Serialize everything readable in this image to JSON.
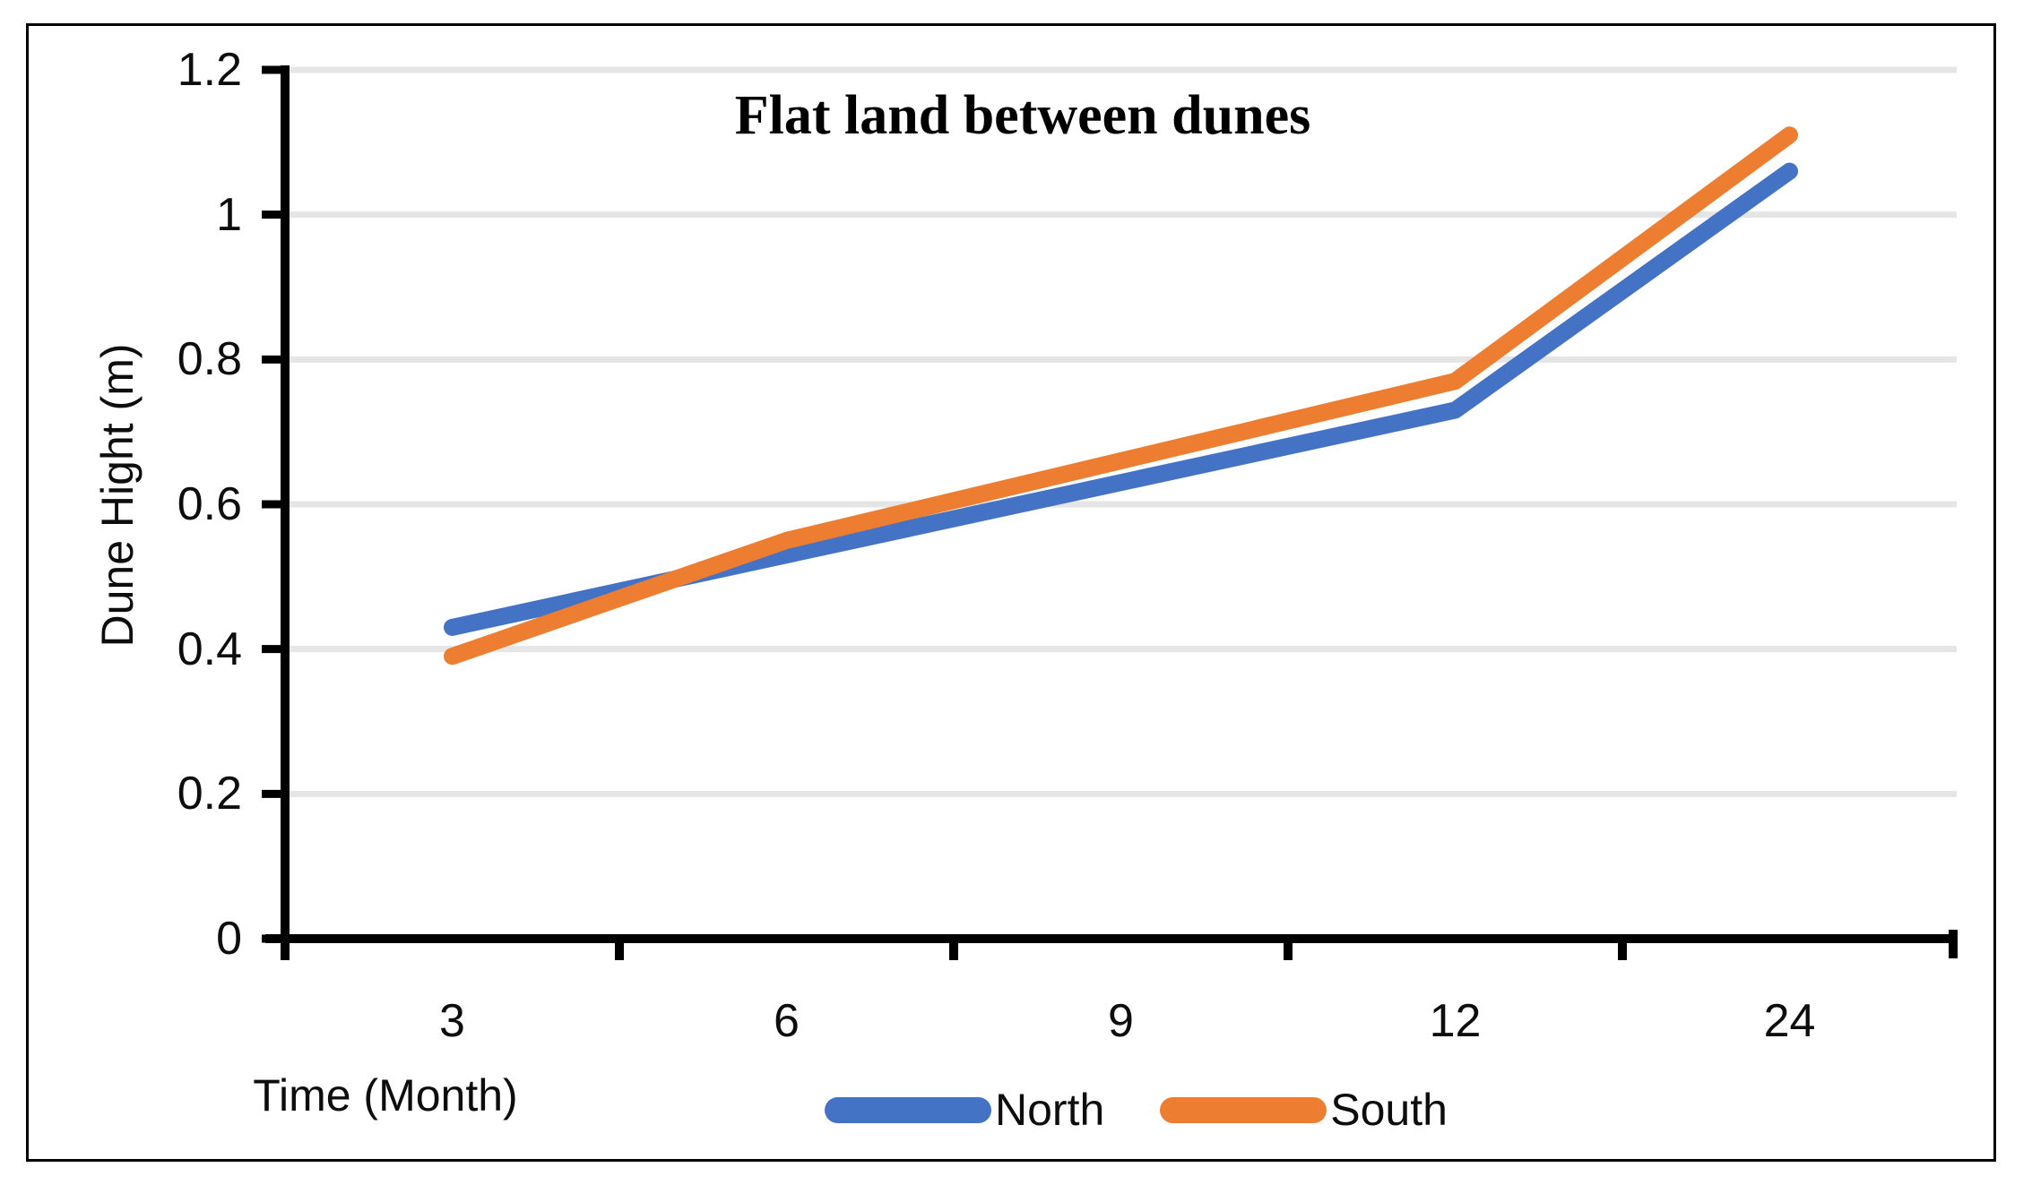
{
  "chart_data": {
    "type": "line",
    "title": "Flat land between dunes",
    "xlabel": "Time (Month)",
    "ylabel": "Dune Hight (m)",
    "categories": [
      "3",
      "6",
      "9",
      "12",
      "24"
    ],
    "series": [
      {
        "name": "North",
        "color": "#4472C4",
        "values": [
          0.43,
          0.53,
          0.63,
          0.73,
          1.06
        ]
      },
      {
        "name": "South",
        "color": "#ED7D31",
        "values": [
          0.39,
          0.55,
          0.66,
          0.77,
          1.11
        ]
      }
    ],
    "ylim": [
      0,
      1.2
    ],
    "ytick_step": 0.2,
    "y_tick_labels_top_to_bottom": [
      "1.2",
      "1",
      "0.8",
      "0.6",
      "0.4",
      "0.2",
      "0"
    ],
    "grid": "horizontal-only",
    "gridline_color": "#E5E5E5",
    "axis_color": "#000000",
    "legend_position": "bottom-center"
  }
}
